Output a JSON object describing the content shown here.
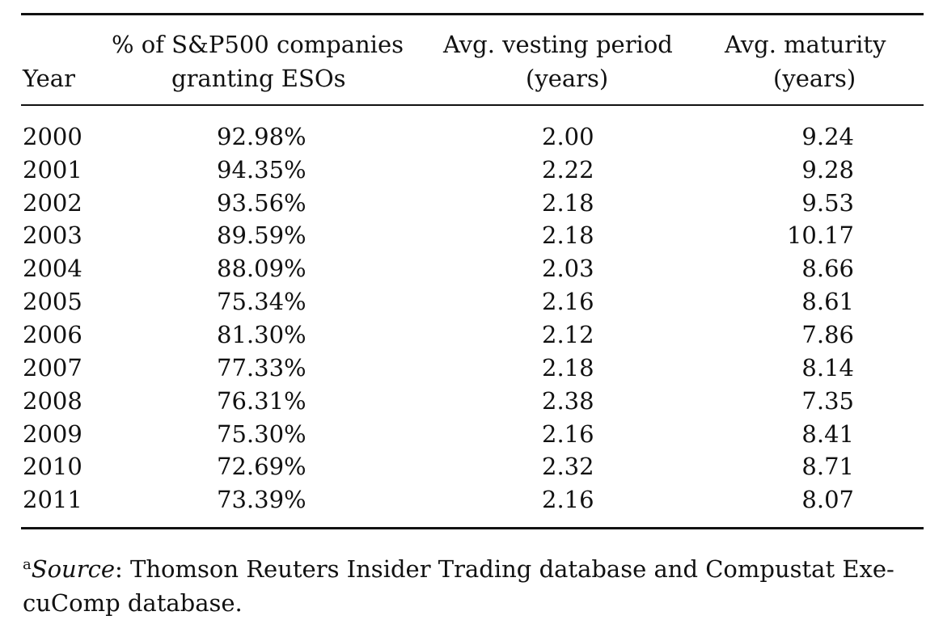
{
  "table": {
    "headers": {
      "year": "Year",
      "pct_line1": "% of S&P500 companies",
      "pct_line2": "granting ESOs",
      "vest_line1": "Avg.  vesting period",
      "vest_line2": "(years)",
      "mat_line1": "Avg.  maturity",
      "mat_line2": "(years)"
    },
    "rows": [
      {
        "year": "2000",
        "pct": "92.98%",
        "vesting": "2.00",
        "maturity": "9.24"
      },
      {
        "year": "2001",
        "pct": "94.35%",
        "vesting": "2.22",
        "maturity": "9.28"
      },
      {
        "year": "2002",
        "pct": "93.56%",
        "vesting": "2.18",
        "maturity": "9.53"
      },
      {
        "year": "2003",
        "pct": "89.59%",
        "vesting": "2.18",
        "maturity": "10.17"
      },
      {
        "year": "2004",
        "pct": "88.09%",
        "vesting": "2.03",
        "maturity": "8.66"
      },
      {
        "year": "2005",
        "pct": "75.34%",
        "vesting": "2.16",
        "maturity": "8.61"
      },
      {
        "year": "2006",
        "pct": "81.30%",
        "vesting": "2.12",
        "maturity": "7.86"
      },
      {
        "year": "2007",
        "pct": "77.33%",
        "vesting": "2.18",
        "maturity": "8.14"
      },
      {
        "year": "2008",
        "pct": "76.31%",
        "vesting": "2.38",
        "maturity": "7.35"
      },
      {
        "year": "2009",
        "pct": "75.30%",
        "vesting": "2.16",
        "maturity": "8.41"
      },
      {
        "year": "2010",
        "pct": "72.69%",
        "vesting": "2.32",
        "maturity": "8.71"
      },
      {
        "year": "2011",
        "pct": "73.39%",
        "vesting": "2.16",
        "maturity": "8.07"
      }
    ]
  },
  "footnote": {
    "marker": "a",
    "label": "Source",
    "line1_text": ":  Thomson Reuters Insider Trading database and Compustat Exe-",
    "line2_text": "cuComp database."
  }
}
